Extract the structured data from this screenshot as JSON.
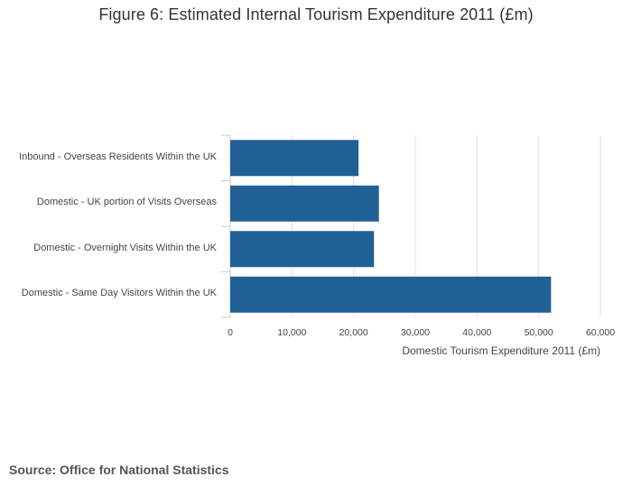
{
  "title": "Figure 6: Estimated Internal Tourism Expenditure 2011 (£m)",
  "source": "Source: Office for National Statistics",
  "colors": {
    "bar": "#206095",
    "grid": "#e0e0e0",
    "axis": "#cccccc",
    "text": "#444444"
  },
  "chart_data": {
    "type": "bar",
    "orientation": "horizontal",
    "title": "Figure 6: Estimated Internal Tourism Expenditure 2011 (£m)",
    "xlabel": "Domestic Tourism Expenditure 2011 (£m)",
    "ylabel": "",
    "categories": [
      "Inbound - Overseas Residents Within the UK",
      "Domestic - UK portion of Visits Overseas",
      "Domestic - Overnight Visits Within the UK",
      "Domestic - Same Day Visitors Within the UK"
    ],
    "values": [
      20800,
      24100,
      23300,
      52000
    ],
    "xlim": [
      0,
      60000
    ],
    "xticks": [
      0,
      10000,
      20000,
      30000,
      40000,
      50000,
      60000
    ],
    "xtick_labels": [
      "0",
      "10,000",
      "20,000",
      "30,000",
      "40,000",
      "50,000",
      "60,000"
    ],
    "grid": true,
    "legend": "none"
  }
}
